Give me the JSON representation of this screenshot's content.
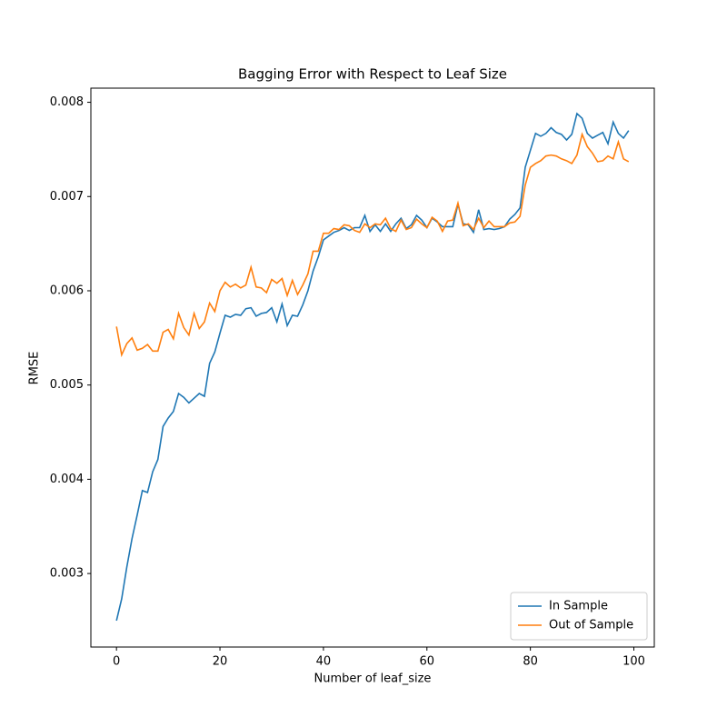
{
  "chart_data": {
    "type": "line",
    "title": "Bagging Error with Respect to Leaf Size",
    "xlabel": "Number of leaf_size",
    "ylabel": "RMSE",
    "x": [
      0,
      1,
      2,
      3,
      4,
      5,
      6,
      7,
      8,
      9,
      10,
      11,
      12,
      13,
      14,
      15,
      16,
      17,
      18,
      19,
      20,
      21,
      22,
      23,
      24,
      25,
      26,
      27,
      28,
      29,
      30,
      31,
      32,
      33,
      34,
      35,
      36,
      37,
      38,
      39,
      40,
      41,
      42,
      43,
      44,
      45,
      46,
      47,
      48,
      49,
      50,
      51,
      52,
      53,
      54,
      55,
      56,
      57,
      58,
      59,
      60,
      61,
      62,
      63,
      64,
      65,
      66,
      67,
      68,
      69,
      70,
      71,
      72,
      73,
      74,
      75,
      76,
      77,
      78,
      79,
      80,
      81,
      82,
      83,
      84,
      85,
      86,
      87,
      88,
      89,
      90,
      91,
      92,
      93,
      94,
      95,
      96,
      97,
      98,
      99
    ],
    "series": [
      {
        "name": "In Sample",
        "color": "#1f77b4",
        "values": [
          0.0025,
          0.00273,
          0.00307,
          0.00337,
          0.00362,
          0.00388,
          0.00386,
          0.00408,
          0.00421,
          0.00456,
          0.00465,
          0.00472,
          0.00491,
          0.00487,
          0.00481,
          0.00486,
          0.00491,
          0.00488,
          0.00523,
          0.00535,
          0.00555,
          0.00574,
          0.00572,
          0.00575,
          0.00574,
          0.00581,
          0.00582,
          0.00573,
          0.00576,
          0.00577,
          0.00582,
          0.00567,
          0.00586,
          0.00563,
          0.00574,
          0.00573,
          0.00585,
          0.006,
          0.00621,
          0.00636,
          0.00654,
          0.00658,
          0.00662,
          0.00664,
          0.00667,
          0.00664,
          0.00667,
          0.00667,
          0.0068,
          0.00663,
          0.0067,
          0.00663,
          0.00671,
          0.00663,
          0.00671,
          0.00677,
          0.00666,
          0.0067,
          0.0068,
          0.00675,
          0.00667,
          0.00677,
          0.00673,
          0.00668,
          0.00668,
          0.00668,
          0.00692,
          0.00671,
          0.0067,
          0.00662,
          0.00686,
          0.00665,
          0.00666,
          0.00665,
          0.00666,
          0.00668,
          0.00676,
          0.00681,
          0.00688,
          0.00731,
          0.00749,
          0.00767,
          0.00764,
          0.00767,
          0.00773,
          0.00768,
          0.00766,
          0.0076,
          0.00766,
          0.00788,
          0.00783,
          0.00767,
          0.00762,
          0.00765,
          0.00768,
          0.00756,
          0.00779,
          0.00767,
          0.00762,
          0.0077
        ]
      },
      {
        "name": "Out of Sample",
        "color": "#ff7f0e",
        "values": [
          0.00562,
          0.00532,
          0.00544,
          0.0055,
          0.00537,
          0.00539,
          0.00543,
          0.00536,
          0.00536,
          0.00556,
          0.00559,
          0.00549,
          0.00576,
          0.00561,
          0.00553,
          0.00576,
          0.0056,
          0.00567,
          0.00587,
          0.00578,
          0.006,
          0.00609,
          0.00604,
          0.00607,
          0.00603,
          0.00606,
          0.00625,
          0.00604,
          0.00603,
          0.00598,
          0.00612,
          0.00608,
          0.00613,
          0.00595,
          0.00611,
          0.00596,
          0.00606,
          0.00618,
          0.00642,
          0.00642,
          0.00661,
          0.00661,
          0.00666,
          0.00665,
          0.0067,
          0.00669,
          0.00664,
          0.00662,
          0.00671,
          0.00667,
          0.00671,
          0.0067,
          0.00677,
          0.00666,
          0.00663,
          0.00675,
          0.00665,
          0.00667,
          0.00676,
          0.00671,
          0.00667,
          0.00678,
          0.00674,
          0.00663,
          0.00674,
          0.00675,
          0.00693,
          0.00669,
          0.00671,
          0.00665,
          0.00677,
          0.00667,
          0.00674,
          0.00668,
          0.00668,
          0.00668,
          0.00672,
          0.00673,
          0.00679,
          0.00712,
          0.00731,
          0.00735,
          0.00738,
          0.00743,
          0.00744,
          0.00743,
          0.0074,
          0.00738,
          0.00735,
          0.00744,
          0.00766,
          0.00753,
          0.00746,
          0.00737,
          0.00738,
          0.00743,
          0.0074,
          0.00758,
          0.0074,
          0.00737
        ]
      }
    ],
    "xlim": [
      -4.95,
      103.95
    ],
    "xticks": [
      0,
      20,
      40,
      60,
      80,
      100
    ],
    "ylim": [
      0.00222,
      0.00815
    ],
    "yticks": [
      0.003,
      0.004,
      0.005,
      0.006,
      0.007,
      0.008
    ],
    "legend": "lower right"
  }
}
